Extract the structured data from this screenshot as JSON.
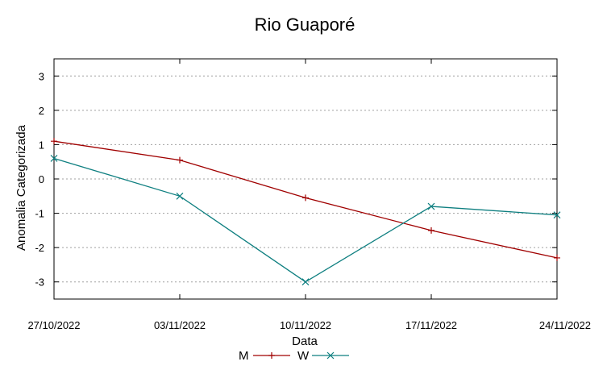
{
  "chart_data": {
    "type": "line",
    "title": "Rio Guaporé",
    "xlabel": "Data",
    "ylabel": "Anomalia Categorizada",
    "categories": [
      "27/10/2022",
      "03/11/2022",
      "10/11/2022",
      "17/11/2022",
      "24/11/2022"
    ],
    "yticks": [
      "-3",
      "-2",
      "-1",
      "0",
      "1",
      "2",
      "3"
    ],
    "ylim": [
      -3.5,
      3.5
    ],
    "grid": "horizontal dotted",
    "legend": "bottom",
    "series": [
      {
        "name": "M",
        "color": "#a00000",
        "marker": "plus",
        "values": [
          1.1,
          0.55,
          -0.55,
          -1.5,
          -2.3
        ]
      },
      {
        "name": "W",
        "color": "#0e7f80",
        "marker": "cross",
        "values": [
          0.6,
          -0.5,
          -3.0,
          -0.8,
          -1.05
        ]
      }
    ]
  }
}
